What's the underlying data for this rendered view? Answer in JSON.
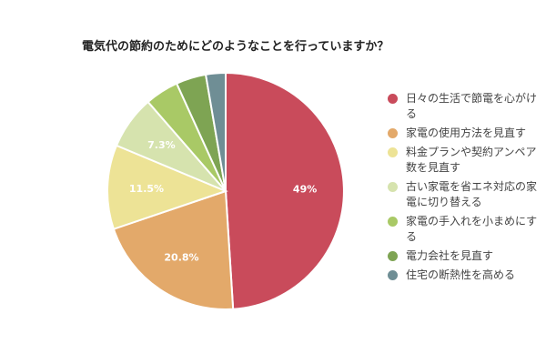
{
  "chart_data": {
    "type": "pie",
    "title": "電気代の節約のためにどのようなことを行っていますか？",
    "legend_position": "right",
    "slices": [
      {
        "name": "日々の生活で節電を心がける",
        "value": 49,
        "label": "49%",
        "color": "#c94b5b"
      },
      {
        "name": "家電の使用方法を見直す",
        "value": 20.8,
        "label": "20.8%",
        "color": "#e3a96a"
      },
      {
        "name": "料金プランや契約アンペア数を見直す",
        "value": 11.5,
        "label": "11.5%",
        "color": "#ede396"
      },
      {
        "name": "古い家電を省エネ対応の家電に切り替える",
        "value": 7.3,
        "label": "7.3%",
        "color": "#d6e3ae"
      },
      {
        "name": "家電の手入れを小まめにする",
        "value": 4.6,
        "label": "",
        "color": "#a9c966"
      },
      {
        "name": "電力会社を見直す",
        "value": 4.1,
        "label": "",
        "color": "#7ea453"
      },
      {
        "name": "住宅の断熱性を高める",
        "value": 2.7,
        "label": "",
        "color": "#6f8e95"
      }
    ]
  }
}
